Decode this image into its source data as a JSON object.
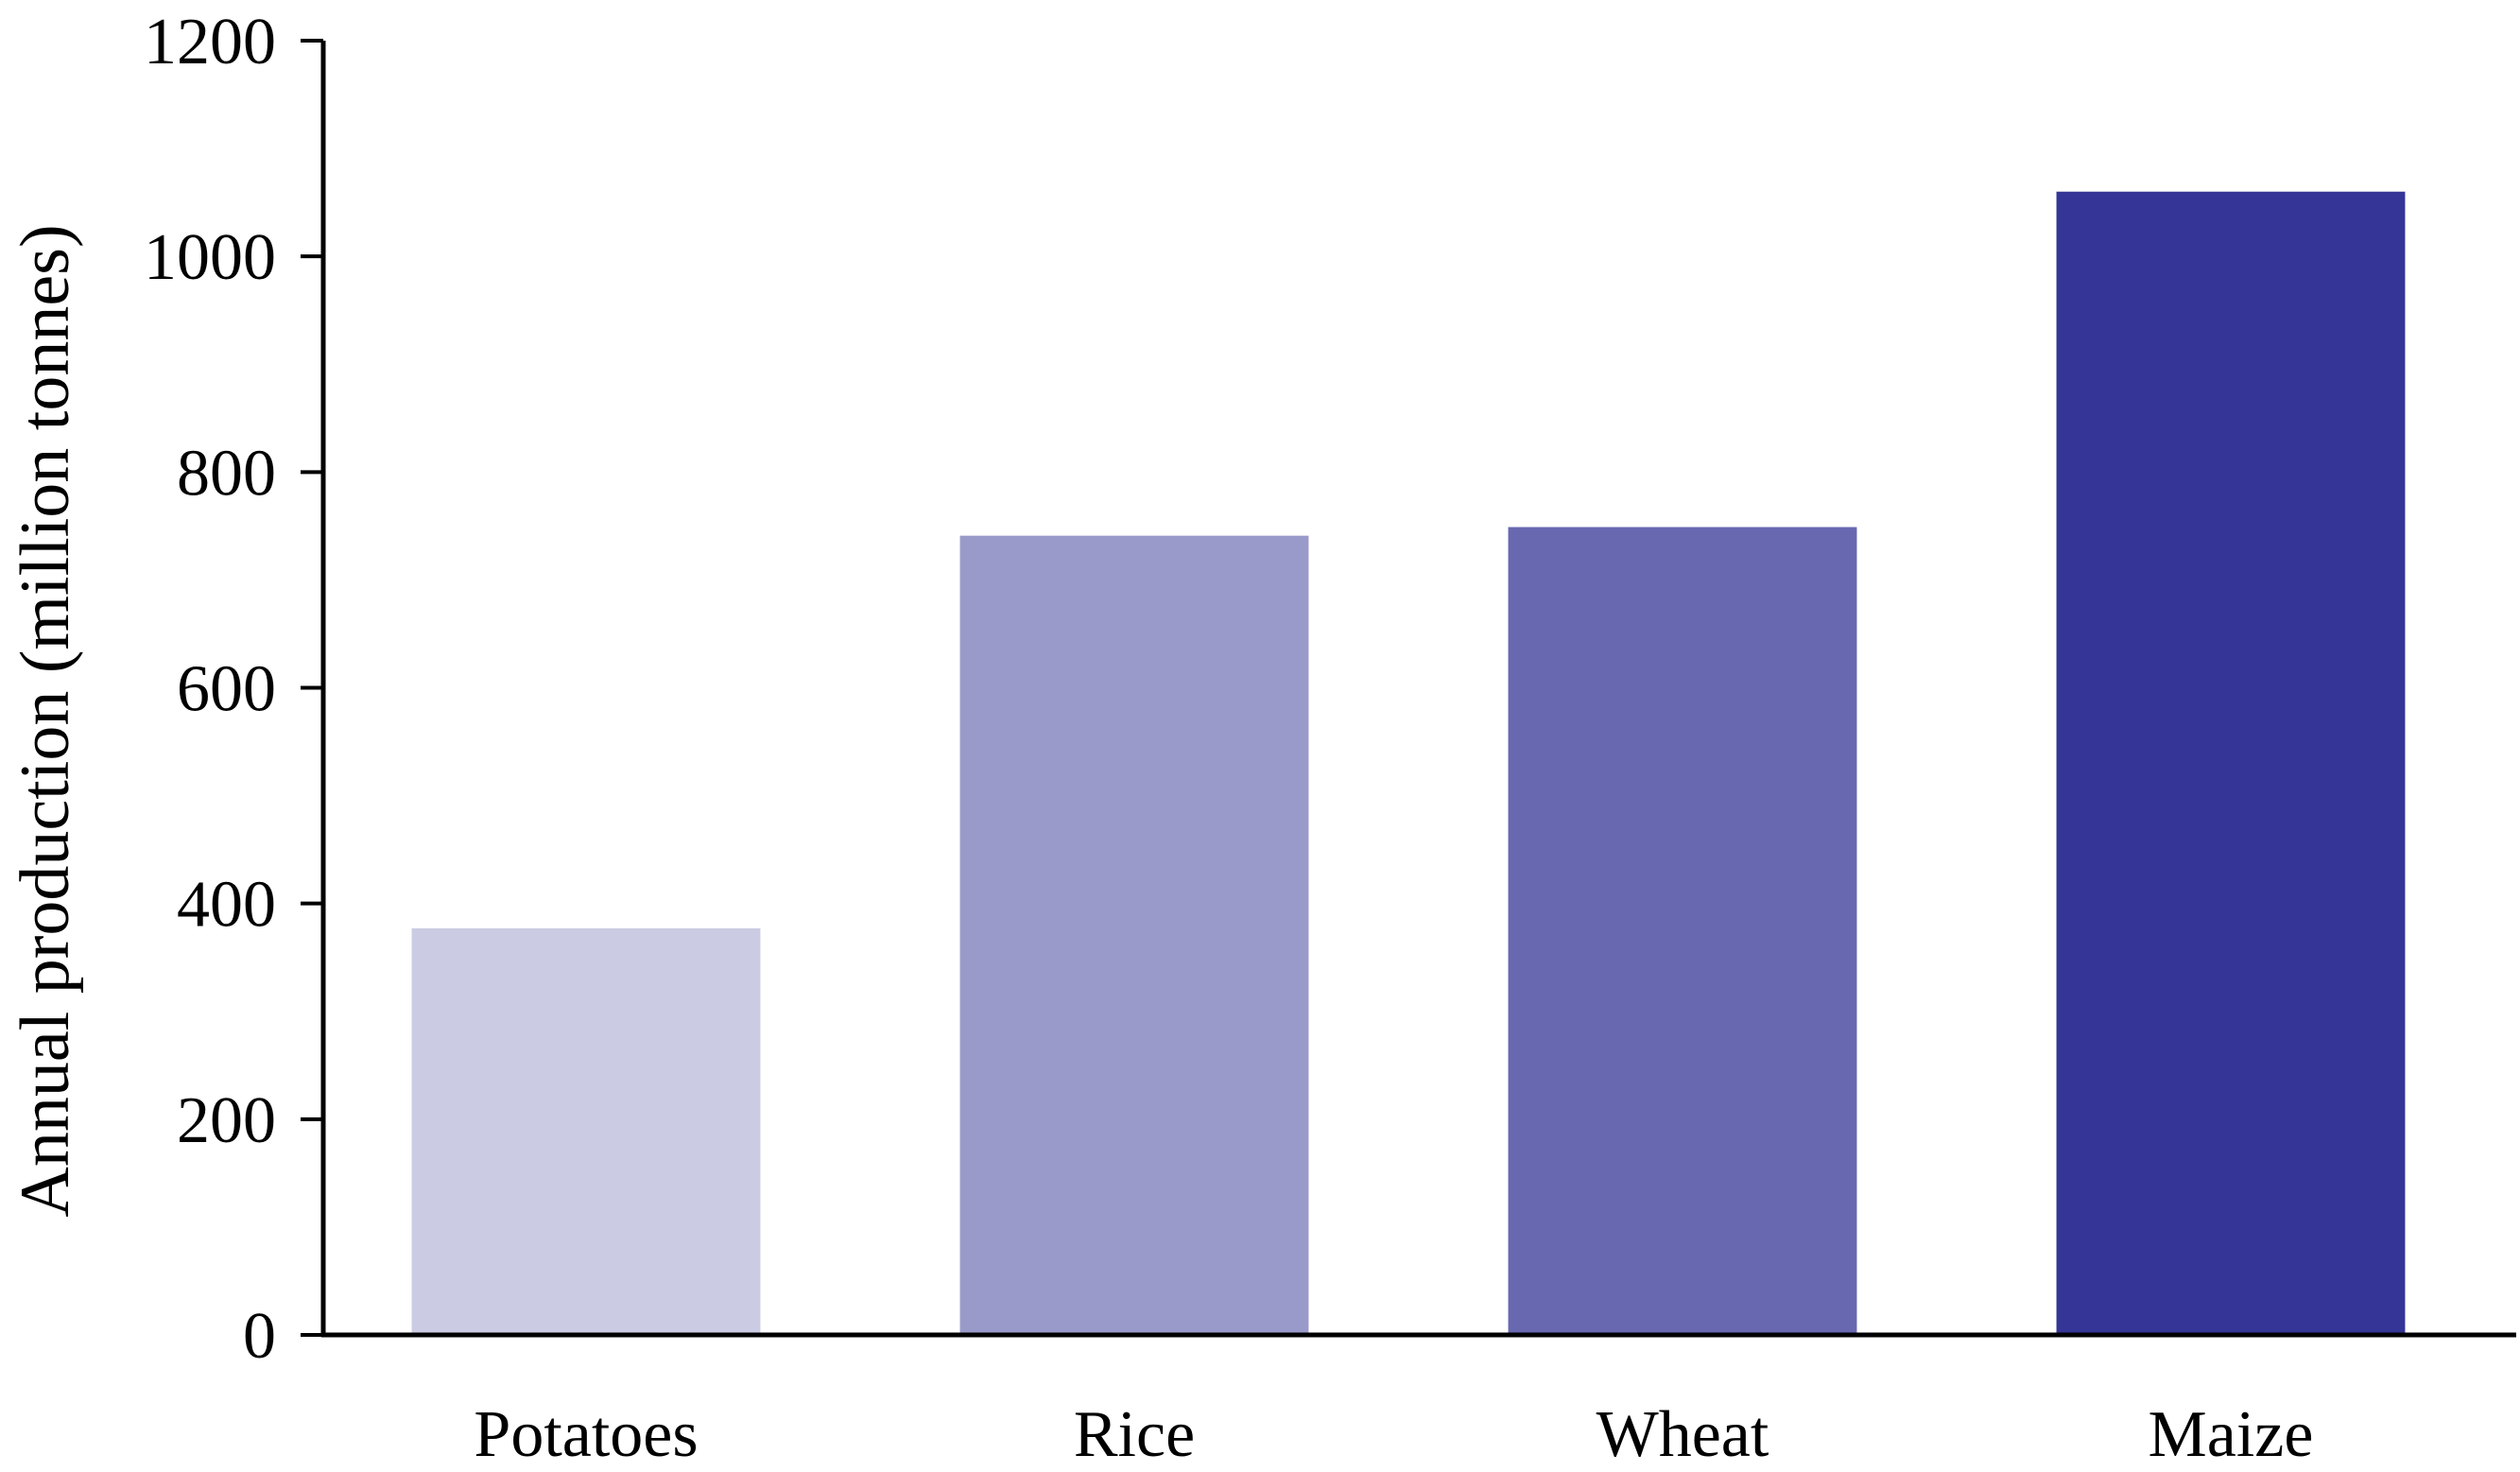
{
  "chart_data": {
    "type": "bar",
    "categories": [
      "Potatoes",
      "Rice",
      "Wheat",
      "Maize"
    ],
    "values": [
      377,
      741,
      749,
      1060
    ],
    "colors": [
      "#cbcbe3",
      "#9a9aca",
      "#6868b1",
      "#353597"
    ],
    "title": "",
    "xlabel": "",
    "ylabel": "Annual production (million tonnes)",
    "ylim": [
      0,
      1200
    ],
    "yticks": [
      0,
      200,
      400,
      600,
      800,
      1000,
      1200
    ],
    "grid": false,
    "legend": "none"
  }
}
